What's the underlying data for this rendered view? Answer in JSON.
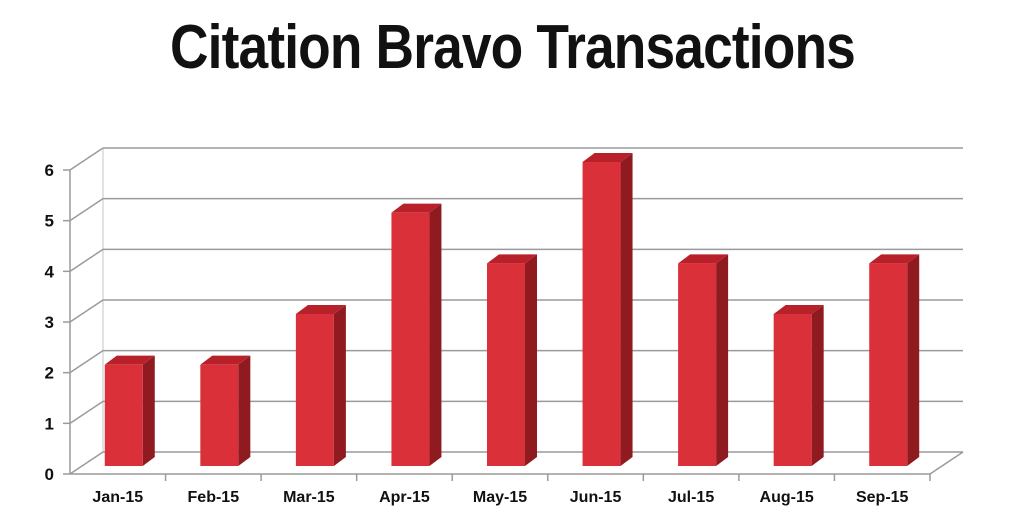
{
  "chart_data": {
    "type": "bar",
    "title": "Citation Bravo Transactions",
    "categories": [
      "Jan-15",
      "Feb-15",
      "Mar-15",
      "Apr-15",
      "May-15",
      "Jun-15",
      "Jul-15",
      "Aug-15",
      "Sep-15"
    ],
    "values": [
      2,
      2,
      3,
      5,
      4,
      6,
      4,
      3,
      4
    ],
    "ylim": [
      0,
      6
    ],
    "yticks": [
      "0",
      "1",
      "2",
      "3",
      "4",
      "5",
      "6"
    ],
    "xlabel": "",
    "ylabel": "",
    "grid": true,
    "bar_color": "#d9303a",
    "bar_side_color": "#8f1a20",
    "bar_top_color": "#b82129"
  }
}
